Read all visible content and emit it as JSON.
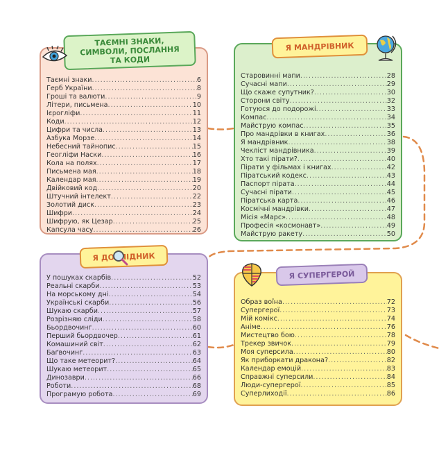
{
  "colors": {
    "connector": "#e08a4a",
    "peach": "#fce3d6",
    "green": "#dcefcc",
    "purple": "#e3d6ee",
    "yellow": "#fff39a"
  },
  "sections": [
    {
      "title": "ТАЄМНІ ЗНАКИ, СИМВОЛИ, ПОСЛАННЯ ТА КОДИ",
      "icon": "eye-icon",
      "items": [
        {
          "t": "Таємні знаки",
          "p": "6"
        },
        {
          "t": "Герб України",
          "p": "8"
        },
        {
          "t": "Гроші та валюти",
          "p": "9"
        },
        {
          "t": "Літери, письмена",
          "p": "10"
        },
        {
          "t": "Ієрогліфи",
          "p": "11"
        },
        {
          "t": "Коди",
          "p": "12"
        },
        {
          "t": "Цифри та числа",
          "p": "13"
        },
        {
          "t": "Азбука Морзе",
          "p": "14"
        },
        {
          "t": "Небесний тайнопис",
          "p": "15"
        },
        {
          "t": "Геогліфи Наски",
          "p": "16"
        },
        {
          "t": "Кола на полях",
          "p": "17"
        },
        {
          "t": "Письмена мая",
          "p": "18"
        },
        {
          "t": "Календар мая",
          "p": "19"
        },
        {
          "t": "Двійковий код",
          "p": "20"
        },
        {
          "t": "Штучний інтелект",
          "p": "22"
        },
        {
          "t": "Золотий диск",
          "p": "23"
        },
        {
          "t": "Шифри",
          "p": "24"
        },
        {
          "t": "Шифрую, як Цезар",
          "p": "25"
        },
        {
          "t": "Капсула часу",
          "p": "26"
        }
      ]
    },
    {
      "title": "Я МАНДРІВНИК",
      "icon": "globe-icon",
      "items": [
        {
          "t": "Старовинні мапи",
          "p": "28"
        },
        {
          "t": "Сучасні мапи",
          "p": "29"
        },
        {
          "t": "Що скаже супутник?",
          "p": "30"
        },
        {
          "t": "Сторони світу",
          "p": "32"
        },
        {
          "t": "Готуюся до подорожі",
          "p": "33"
        },
        {
          "t": "Компас",
          "p": "34"
        },
        {
          "t": "Майструю компас",
          "p": "35"
        },
        {
          "t": "Про мандрівки в книгах",
          "p": "36"
        },
        {
          "t": "Я мандрівник",
          "p": "38"
        },
        {
          "t": "Чекліст мандрівника",
          "p": "39"
        },
        {
          "t": "Хто такі пірати?",
          "p": "40"
        },
        {
          "t": "Пірати у фільмах і книгах",
          "p": "42"
        },
        {
          "t": "Піратський кодекс",
          "p": "43"
        },
        {
          "t": "Паспорт пірата",
          "p": "44"
        },
        {
          "t": "Сучасні пірати",
          "p": "45"
        },
        {
          "t": "Піратська карта",
          "p": "46"
        },
        {
          "t": "Космічні мандрівки",
          "p": "47"
        },
        {
          "t": "Місія «Марс»",
          "p": "48"
        },
        {
          "t": "Професія «космонавт»",
          "p": "49"
        },
        {
          "t": "Майструю ракету",
          "p": "50"
        }
      ]
    },
    {
      "title": "Я ДОСЛІДНИК",
      "icon": "magnifier-icon",
      "items": [
        {
          "t": "У пошуках скарбів",
          "p": "52"
        },
        {
          "t": "Реальні скарби",
          "p": "53"
        },
        {
          "t": "На морському дні",
          "p": "54"
        },
        {
          "t": "Українські скарби",
          "p": "56"
        },
        {
          "t": "Шукаю скарби",
          "p": "57"
        },
        {
          "t": "Розрізняю сліди",
          "p": "58"
        },
        {
          "t": "Бьордвочинг",
          "p": "60"
        },
        {
          "t": "Перший бьордвочер",
          "p": "61"
        },
        {
          "t": "Комашиний світ",
          "p": "62"
        },
        {
          "t": "Баґвочинг",
          "p": "63"
        },
        {
          "t": "Що таке метеорит?",
          "p": "64"
        },
        {
          "t": "Шукаю метеорит",
          "p": "65"
        },
        {
          "t": "Динозаври",
          "p": "66"
        },
        {
          "t": "Роботи",
          "p": "68"
        },
        {
          "t": "Програмую робота",
          "p": "69"
        }
      ]
    },
    {
      "title": "Я СУПЕРГЕРОЙ",
      "icon": "shield-icon",
      "items": [
        {
          "t": "Образ воїна",
          "p": "72"
        },
        {
          "t": "Супергерої",
          "p": "73"
        },
        {
          "t": "Мій комікс",
          "p": "74"
        },
        {
          "t": "Аніме",
          "p": "76"
        },
        {
          "t": "Мистецтво бою",
          "p": "78"
        },
        {
          "t": "Трекер звичок",
          "p": "79"
        },
        {
          "t": "Моя суперсила",
          "p": "80"
        },
        {
          "t": "Як приборкати дракона?",
          "p": "82"
        },
        {
          "t": "Календар емоцій",
          "p": "83"
        },
        {
          "t": "Справжні суперсили",
          "p": "84"
        },
        {
          "t": "Люди-супергерої",
          "p": "85"
        },
        {
          "t": "Суперлиходії",
          "p": "86"
        }
      ]
    }
  ]
}
